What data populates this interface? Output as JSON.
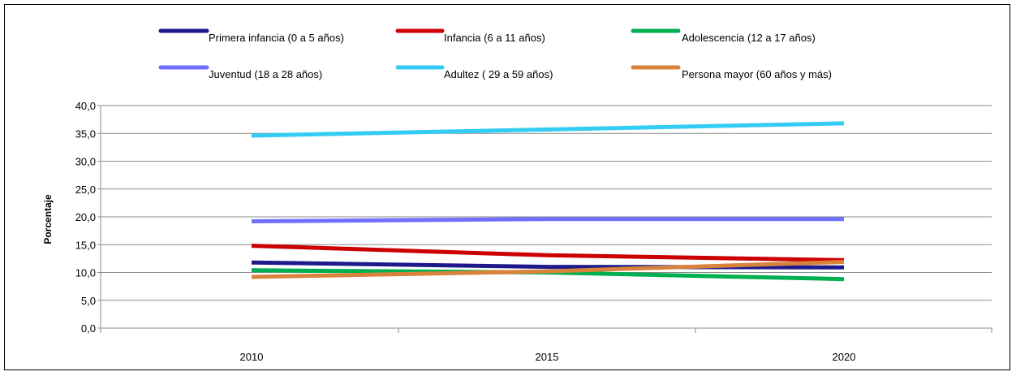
{
  "chart_data": {
    "type": "line",
    "title": "",
    "xlabel": "",
    "ylabel": "Porcentaje",
    "x": [
      "2010",
      "2015",
      "2020"
    ],
    "ylim": [
      0,
      40
    ],
    "yticks": [
      "0,0",
      "5,0",
      "10,0",
      "15,0",
      "20,0",
      "25,0",
      "30,0",
      "35,0",
      "40,0"
    ],
    "grid": "horizontal",
    "legend_position": "top",
    "series": [
      {
        "name": "Primera infancia (0 a 5 años)",
        "color": "#1f1a8c",
        "values": [
          11.8,
          11.0,
          10.9
        ]
      },
      {
        "name": "Infancia (6 a 11 años)",
        "color": "#cc0000",
        "values": [
          14.8,
          13.1,
          12.2
        ]
      },
      {
        "name": "Adolescencia (12 a 17 años)",
        "color": "#00b050",
        "values": [
          10.4,
          10.0,
          8.8
        ]
      },
      {
        "name": "Juventud (18 a 28 años)",
        "color": "#7070ff",
        "values": [
          19.2,
          19.6,
          19.6
        ]
      },
      {
        "name": "Adultez ( 29 a 59 años)",
        "color": "#33ccf2",
        "values": [
          34.6,
          35.7,
          36.8
        ]
      },
      {
        "name": "Persona mayor (60 años y más)",
        "color": "#d9823b",
        "values": [
          9.2,
          10.2,
          11.9
        ]
      }
    ]
  }
}
